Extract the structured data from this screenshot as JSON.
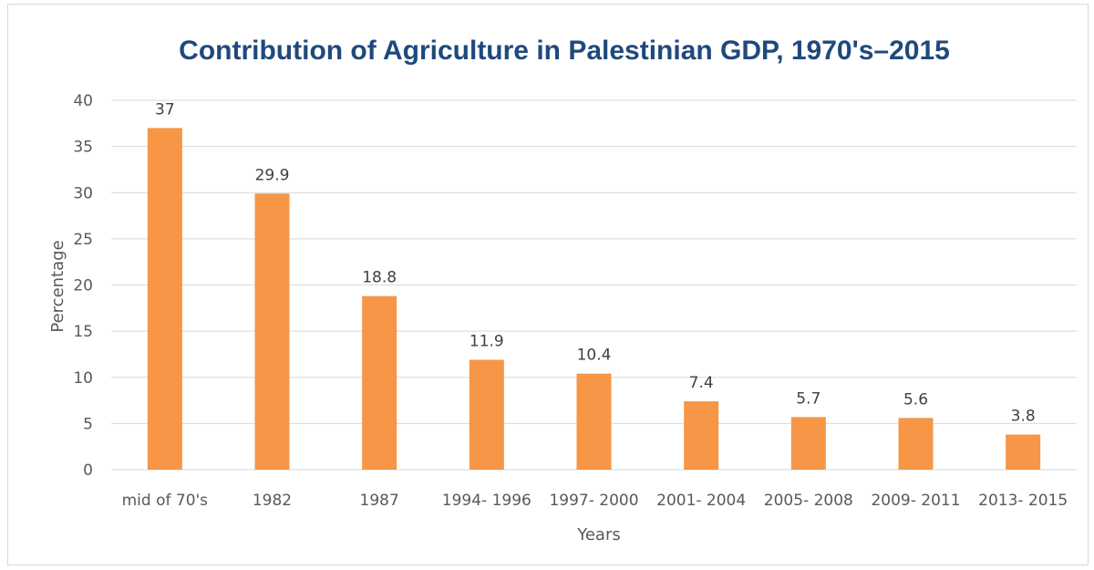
{
  "chart_data": {
    "type": "bar",
    "title": "Contribution of Agriculture in Palestinian GDP, 1970's–2015",
    "xlabel": "Years",
    "ylabel": "Percentage",
    "categories": [
      "mid of 70's",
      "1982",
      "1987",
      "1994- 1996",
      "1997- 2000",
      "2001- 2004",
      "2005- 2008",
      "2009- 2011",
      "2013- 2015"
    ],
    "values": [
      37,
      29.9,
      18.8,
      11.9,
      10.4,
      7.4,
      5.7,
      5.6,
      3.8
    ],
    "data_labels": [
      "37",
      "29.9",
      "18.8",
      "11.9",
      "10.4",
      "7.4",
      "5.7",
      "5.6",
      "3.8"
    ],
    "ylim": [
      0,
      40
    ],
    "yticks": [
      0,
      5,
      10,
      15,
      20,
      25,
      30,
      35,
      40
    ],
    "grid": true,
    "legend": "none",
    "bar_color": "#f79646"
  }
}
